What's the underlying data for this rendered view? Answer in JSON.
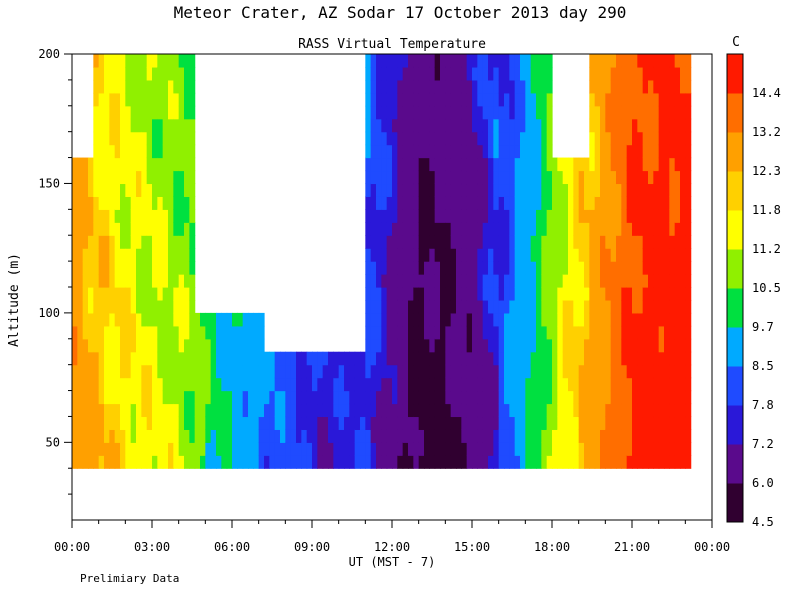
{
  "chart_data": {
    "type": "heatmap",
    "title": "Meteor Crater, AZ  Sodar  17 October 2013  day 290",
    "subtitle": "RASS Virtual Temperature",
    "xlabel": "UT  (MST - 7)",
    "ylabel": "Altitude (m)",
    "footnote": "Prelimiary Data",
    "x_ticks": [
      "00:00",
      "03:00",
      "06:00",
      "09:00",
      "12:00",
      "15:00",
      "18:00",
      "21:00",
      "00:00"
    ],
    "xlim_hours": [
      0,
      24
    ],
    "y_ticks": [
      50,
      100,
      150,
      200
    ],
    "ylim": [
      20,
      200
    ],
    "colorbar": {
      "unit": "C",
      "levels": [
        4.5,
        6.0,
        7.2,
        7.8,
        8.5,
        9.7,
        10.5,
        11.2,
        11.8,
        12.3,
        13.2,
        14.4
      ],
      "colors": [
        "#300030",
        "#5a0a8c",
        "#2a18d8",
        "#1f4bff",
        "#00aaff",
        "#00e040",
        "#90f000",
        "#ffff00",
        "#ffd000",
        "#ffa000",
        "#ff6e00",
        "#ff1a00"
      ]
    },
    "data_altitude_range": [
      40,
      200
    ],
    "approx_time_profile": [
      {
        "hour": 0.0,
        "temp_c": 12.8
      },
      {
        "hour": 1.0,
        "temp_c": 12.1
      },
      {
        "hour": 2.0,
        "temp_c": 11.6
      },
      {
        "hour": 3.0,
        "temp_c": 11.3
      },
      {
        "hour": 4.0,
        "temp_c": 11.0
      },
      {
        "hour": 5.0,
        "temp_c": 10.4
      },
      {
        "hour": 6.0,
        "temp_c": 9.6
      },
      {
        "hour": 7.0,
        "temp_c": 8.9
      },
      {
        "hour": 8.0,
        "temp_c": 8.3
      },
      {
        "hour": 9.0,
        "temp_c": 7.9
      },
      {
        "hour": 10.0,
        "temp_c": 7.6
      },
      {
        "hour": 11.0,
        "temp_c": 8.1
      },
      {
        "hour": 12.0,
        "temp_c": 7.0
      },
      {
        "hour": 13.0,
        "temp_c": 5.8
      },
      {
        "hour": 14.0,
        "temp_c": 5.9
      },
      {
        "hour": 15.0,
        "temp_c": 6.6
      },
      {
        "hour": 16.0,
        "temp_c": 7.8
      },
      {
        "hour": 17.0,
        "temp_c": 9.2
      },
      {
        "hour": 18.0,
        "temp_c": 10.9
      },
      {
        "hour": 19.0,
        "temp_c": 12.0
      },
      {
        "hour": 20.0,
        "temp_c": 13.0
      },
      {
        "hour": 21.0,
        "temp_c": 14.6
      },
      {
        "hour": 22.0,
        "temp_c": 14.9
      },
      {
        "hour": 23.2,
        "temp_c": 14.9
      }
    ],
    "data_gaps": [
      {
        "hour_start": 0.0,
        "hour_end": 0.9,
        "alt_min": 160,
        "alt_max": 200
      },
      {
        "hour_start": 4.6,
        "hour_end": 7.2,
        "alt_min": 100,
        "alt_max": 200
      },
      {
        "hour_start": 7.2,
        "hour_end": 10.9,
        "alt_min": 85,
        "alt_max": 200
      },
      {
        "hour_start": 18.0,
        "hour_end": 19.3,
        "alt_min": 160,
        "alt_max": 200
      }
    ]
  }
}
